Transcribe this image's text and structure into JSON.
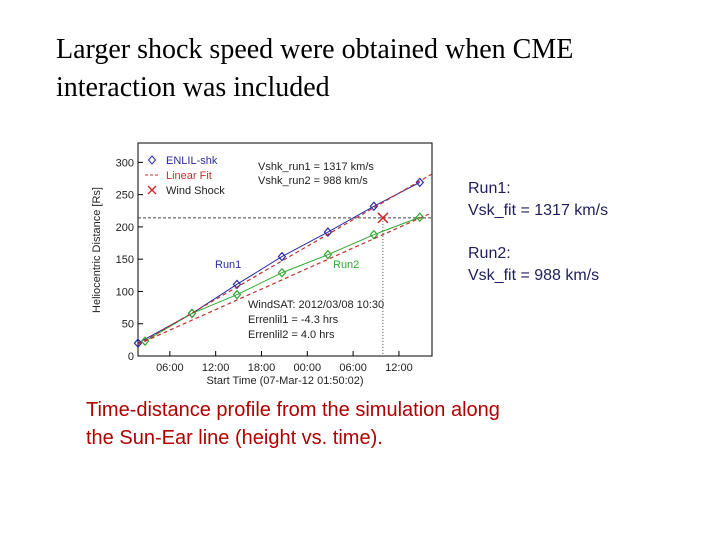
{
  "slide": {
    "title": [
      "Larger shock speed were obtained when CME",
      "interaction was included"
    ],
    "notes": [
      "Run1:",
      "Vsk_fit = 1317 km/s",
      "Run2:",
      "Vsk_fit  = 988 km/s"
    ],
    "caption": [
      "Time-distance profile from the simulation along",
      "the Sun-Ear line  (height vs. time)."
    ]
  },
  "chart_data": {
    "type": "line",
    "ylabel": "Heliocentric Distance [Rs]",
    "xlabel": "Start Time (07-Mar-12 01:50:02)",
    "xlim": [
      0,
      38.5
    ],
    "ylim": [
      0,
      330
    ],
    "yticks": [
      0,
      50,
      100,
      150,
      200,
      250,
      300
    ],
    "xticks": [
      {
        "value": 4.17,
        "label": "06:00"
      },
      {
        "value": 10.17,
        "label": "12:00"
      },
      {
        "value": 16.17,
        "label": "18:00"
      },
      {
        "value": 22.17,
        "label": "00:00"
      },
      {
        "value": 28.17,
        "label": "06:00"
      },
      {
        "value": 34.17,
        "label": "12:00"
      }
    ],
    "series": [
      {
        "name": "ENLIL-shk",
        "color": "#2a2aa8",
        "marker": "diamond",
        "x": [
          0,
          7.07,
          12.96,
          18.85,
          24.87,
          30.89,
          36.9
        ],
        "values": [
          20,
          66,
          111,
          154,
          192,
          232,
          269
        ]
      },
      {
        "color": "#2ea82e",
        "marker": "diamond",
        "x": [
          0.92,
          7.07,
          12.96,
          18.85,
          24.87,
          30.89,
          36.9
        ],
        "values": [
          23,
          66,
          95,
          129,
          157,
          188,
          215
        ]
      },
      {
        "name": "Linear Fit",
        "color": "#c03030",
        "dashed": true,
        "x": [
          0,
          38.5
        ],
        "values": [
          18,
          282
        ]
      },
      {
        "color": "#c03030",
        "dashed": true,
        "x": [
          0,
          38.5
        ],
        "values": [
          18,
          222
        ]
      }
    ],
    "wind_shock": {
      "name": "Wind Shock",
      "color": "#d02020",
      "x": 32.07,
      "y": 214
    },
    "annotations": [
      "Vshk_run1 = 1317 km/s",
      "Vshk_run2 =  988 km/s",
      "Run1",
      "Run2",
      "WindSAT: 2012/03/08 10:30",
      "Errenlil1 =  -4.3 hrs",
      "Errenlil2 =   4.0 hrs"
    ]
  }
}
